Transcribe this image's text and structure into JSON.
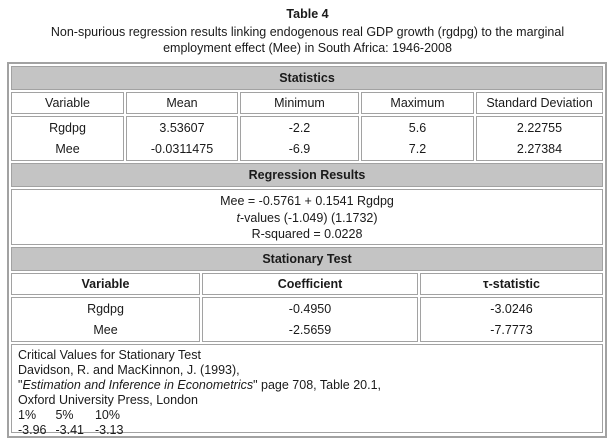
{
  "title": "Table 4",
  "subtitle": "Non-spurious regression results linking endogenous real GDP growth (rgdpg) to the marginal employment effect (Mee) in South Africa: 1946-2008",
  "statistics": {
    "section_title": "Statistics",
    "columns": [
      "Variable",
      "Mean",
      "Minimum",
      "Maximum",
      "Standard Deviation"
    ],
    "rows": [
      {
        "variable": "Rgdpg",
        "mean": "3.53607",
        "minimum": "-2.2",
        "maximum": "5.6",
        "std_dev": "2.22755"
      },
      {
        "variable": "Mee",
        "mean": "-0.0311475",
        "minimum": "-6.9",
        "maximum": "7.2",
        "std_dev": "2.27384"
      }
    ]
  },
  "regression": {
    "section_title": "Regression Results",
    "equation": "Mee = -0.5761 + 0.1541 Rgdpg",
    "tvalues_prefix": "t",
    "tvalues_rest": "-values (-1.049) (1.1732)",
    "r_squared": "R-squared = 0.0228"
  },
  "stationary": {
    "section_title": "Stationary Test",
    "columns": [
      "Variable",
      "Coefficient",
      "τ-statistic"
    ],
    "rows": [
      {
        "variable": "Rgdpg",
        "coefficient": "-0.4950",
        "tau_statistic": "-3.0246"
      },
      {
        "variable": "Mee",
        "coefficient": "-2.5659",
        "tau_statistic": "-7.7773"
      }
    ]
  },
  "footnote": {
    "line1": "Critical Values for Stationary Test",
    "line2": "Davidson, R. and MacKinnon, J. (1993),",
    "line3_pre": "\"",
    "line3_italic": "Estimation and Inference in Econometrics",
    "line3_post": "\" page 708, Table 20.1,",
    "line4": "Oxford University Press, London",
    "percent_levels": [
      "1%",
      "5%",
      "10%"
    ],
    "critical_values": [
      "-3.96",
      "-3.41",
      "-3.13"
    ]
  }
}
